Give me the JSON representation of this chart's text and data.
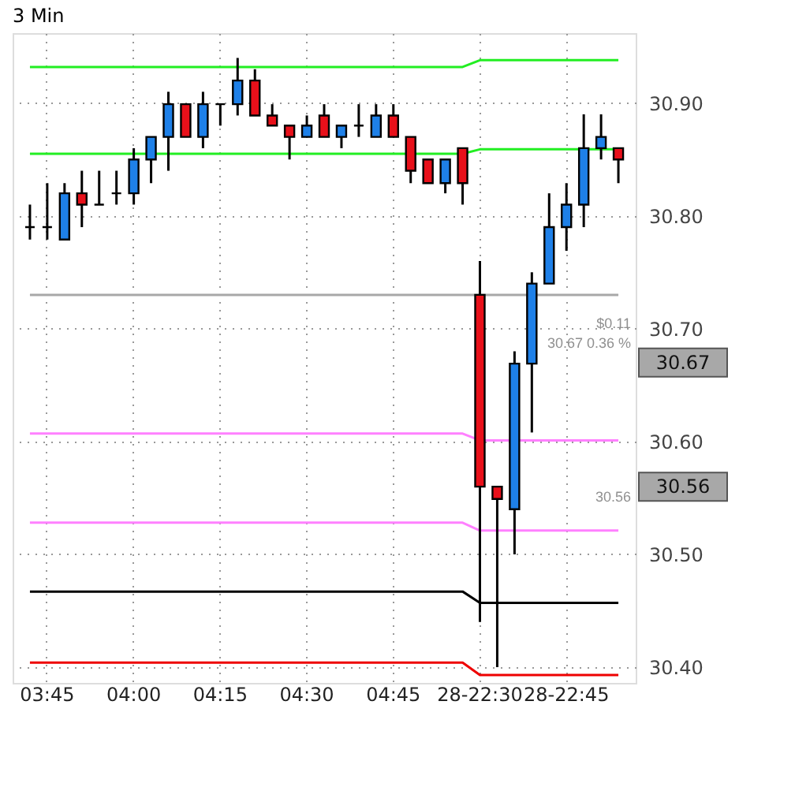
{
  "chart_data": {
    "type": "candlestick",
    "title": "3 Min",
    "categories": [
      null,
      "03:45",
      null,
      null,
      null,
      null,
      "04:00",
      null,
      null,
      null,
      null,
      "04:15",
      null,
      null,
      null,
      null,
      "04:30",
      null,
      null,
      null,
      null,
      "04:45",
      null,
      null,
      null,
      null,
      "28-22:30",
      null,
      null,
      null,
      null,
      "28-22:45",
      null,
      null,
      null
    ],
    "ohlc": [
      [
        30.79,
        30.81,
        30.779,
        30.79
      ],
      [
        30.79,
        30.829,
        30.779,
        30.79
      ],
      [
        30.779,
        30.829,
        30.779,
        30.82
      ],
      [
        30.82,
        30.84,
        30.79,
        30.81
      ],
      [
        30.81,
        30.84,
        30.81,
        30.81
      ],
      [
        30.82,
        30.84,
        30.81,
        30.82
      ],
      [
        30.82,
        30.86,
        30.81,
        30.85
      ],
      [
        30.85,
        30.87,
        30.829,
        30.87
      ],
      [
        30.87,
        30.91,
        30.84,
        30.899
      ],
      [
        30.899,
        30.899,
        30.87,
        30.87
      ],
      [
        30.87,
        30.91,
        30.86,
        30.899
      ],
      [
        30.899,
        30.899,
        30.88,
        30.899
      ],
      [
        30.899,
        30.94,
        30.889,
        30.92
      ],
      [
        30.92,
        30.93,
        30.889,
        30.889
      ],
      [
        30.889,
        30.899,
        30.88,
        30.88
      ],
      [
        30.88,
        30.88,
        30.85,
        30.87
      ],
      [
        30.87,
        30.889,
        30.87,
        30.88
      ],
      [
        30.889,
        30.899,
        30.87,
        30.87
      ],
      [
        30.87,
        30.88,
        30.86,
        30.88
      ],
      [
        30.88,
        30.899,
        30.87,
        30.88
      ],
      [
        30.87,
        30.899,
        30.87,
        30.889
      ],
      [
        30.889,
        30.899,
        30.87,
        30.87
      ],
      [
        30.87,
        30.87,
        30.829,
        30.84
      ],
      [
        30.85,
        30.85,
        30.829,
        30.829
      ],
      [
        30.829,
        30.85,
        30.82,
        30.85
      ],
      [
        30.86,
        30.86,
        30.81,
        30.829
      ],
      [
        30.73,
        30.76,
        30.44,
        30.56
      ],
      [
        30.56,
        30.56,
        30.4,
        30.549
      ],
      [
        30.54,
        30.68,
        30.5,
        30.669
      ],
      [
        30.669,
        30.75,
        30.608,
        30.74
      ],
      [
        30.74,
        30.82,
        30.74,
        30.79
      ],
      [
        30.79,
        30.829,
        30.769,
        30.81
      ],
      [
        30.81,
        30.89,
        30.79,
        30.86
      ],
      [
        30.86,
        30.89,
        30.85,
        30.87
      ],
      [
        30.86,
        30.86,
        30.829,
        30.85
      ]
    ],
    "colors": [
      "#000000",
      "#000000",
      "#1e80e8",
      "#e8101a",
      "#000000",
      "#000000",
      "#1e80e8",
      "#1e80e8",
      "#1e80e8",
      "#e8101a",
      "#1e80e8",
      "#000000",
      "#1e80e8",
      "#e8101a",
      "#e8101a",
      "#e8101a",
      "#1e80e8",
      "#e8101a",
      "#1e80e8",
      "#000000",
      "#1e80e8",
      "#e8101a",
      "#e8101a",
      "#e8101a",
      "#1e80e8",
      "#e8101a",
      "#e8101a",
      "#e8101a",
      "#1e80e8",
      "#1e80e8",
      "#1e80e8",
      "#1e80e8",
      "#1e80e8",
      "#1e80e8",
      "#e8101a"
    ],
    "series": [
      {
        "type": "line",
        "color": "#22ee22",
        "values": [
          30.932,
          30.932,
          30.932,
          30.932,
          30.932,
          30.932,
          30.932,
          30.932,
          30.932,
          30.932,
          30.932,
          30.932,
          30.932,
          30.932,
          30.932,
          30.932,
          30.932,
          30.932,
          30.932,
          30.932,
          30.932,
          30.932,
          30.932,
          30.932,
          30.932,
          30.932,
          30.938,
          30.938,
          30.938,
          30.938,
          30.938,
          30.938,
          30.938,
          30.938,
          30.938
        ]
      },
      {
        "type": "line",
        "color": "#22ee22",
        "values": [
          30.855,
          30.855,
          30.855,
          30.855,
          30.855,
          30.855,
          30.855,
          30.855,
          30.855,
          30.855,
          30.855,
          30.855,
          30.855,
          30.855,
          30.855,
          30.855,
          30.855,
          30.855,
          30.855,
          30.855,
          30.855,
          30.855,
          30.855,
          30.855,
          30.855,
          30.855,
          30.859,
          30.859,
          30.859,
          30.859,
          30.859,
          30.859,
          30.859,
          30.859,
          30.859
        ]
      },
      {
        "type": "line",
        "color": "#a8a8a8",
        "values": [
          30.73,
          30.73,
          30.73,
          30.73,
          30.73,
          30.73,
          30.73,
          30.73,
          30.73,
          30.73,
          30.73,
          30.73,
          30.73,
          30.73,
          30.73,
          30.73,
          30.73,
          30.73,
          30.73,
          30.73,
          30.73,
          30.73,
          30.73,
          30.73,
          30.73,
          30.73,
          30.73,
          30.73,
          30.73,
          30.73,
          30.73,
          30.73,
          30.73,
          30.73,
          30.73
        ]
      },
      {
        "type": "line",
        "color": "#ff80ff",
        "values": [
          30.607,
          30.607,
          30.607,
          30.607,
          30.607,
          30.607,
          30.607,
          30.607,
          30.607,
          30.607,
          30.607,
          30.607,
          30.607,
          30.607,
          30.607,
          30.607,
          30.607,
          30.607,
          30.607,
          30.607,
          30.607,
          30.607,
          30.607,
          30.607,
          30.607,
          30.607,
          30.601,
          30.601,
          30.601,
          30.601,
          30.601,
          30.601,
          30.601,
          30.601,
          30.601
        ]
      },
      {
        "type": "line",
        "color": "#ff80ff",
        "values": [
          30.528,
          30.528,
          30.528,
          30.528,
          30.528,
          30.528,
          30.528,
          30.528,
          30.528,
          30.528,
          30.528,
          30.528,
          30.528,
          30.528,
          30.528,
          30.528,
          30.528,
          30.528,
          30.528,
          30.528,
          30.528,
          30.528,
          30.528,
          30.528,
          30.528,
          30.528,
          30.521,
          30.521,
          30.521,
          30.521,
          30.521,
          30.521,
          30.521,
          30.521,
          30.521
        ]
      },
      {
        "type": "line",
        "color": "#000000",
        "values": [
          30.467,
          30.467,
          30.467,
          30.467,
          30.467,
          30.467,
          30.467,
          30.467,
          30.467,
          30.467,
          30.467,
          30.467,
          30.467,
          30.467,
          30.467,
          30.467,
          30.467,
          30.467,
          30.467,
          30.467,
          30.467,
          30.467,
          30.467,
          30.467,
          30.467,
          30.467,
          30.457,
          30.457,
          30.457,
          30.457,
          30.457,
          30.457,
          30.457,
          30.457,
          30.457
        ]
      },
      {
        "type": "line",
        "color": "#ee0000",
        "values": [
          30.404,
          30.404,
          30.404,
          30.404,
          30.404,
          30.404,
          30.404,
          30.404,
          30.404,
          30.404,
          30.404,
          30.404,
          30.404,
          30.404,
          30.404,
          30.404,
          30.404,
          30.404,
          30.404,
          30.404,
          30.404,
          30.404,
          30.404,
          30.404,
          30.404,
          30.404,
          30.393,
          30.393,
          30.393,
          30.393,
          30.393,
          30.393,
          30.393,
          30.393,
          30.393
        ]
      }
    ],
    "ylim": [
      30.386,
      30.962
    ],
    "yticks": [
      {
        "value": 30.4,
        "label": "30.40"
      },
      {
        "value": 30.5,
        "label": "30.50"
      },
      {
        "value": 30.6,
        "label": "30.60"
      },
      {
        "value": 30.7,
        "label": "30.70"
      },
      {
        "value": 30.8,
        "label": "30.80"
      },
      {
        "value": 30.9,
        "label": "30.90"
      }
    ],
    "grid": true,
    "annotations": [
      "$0.11",
      "30.67 0.36 %",
      "30.56",
      "30.67",
      "30.56"
    ]
  }
}
